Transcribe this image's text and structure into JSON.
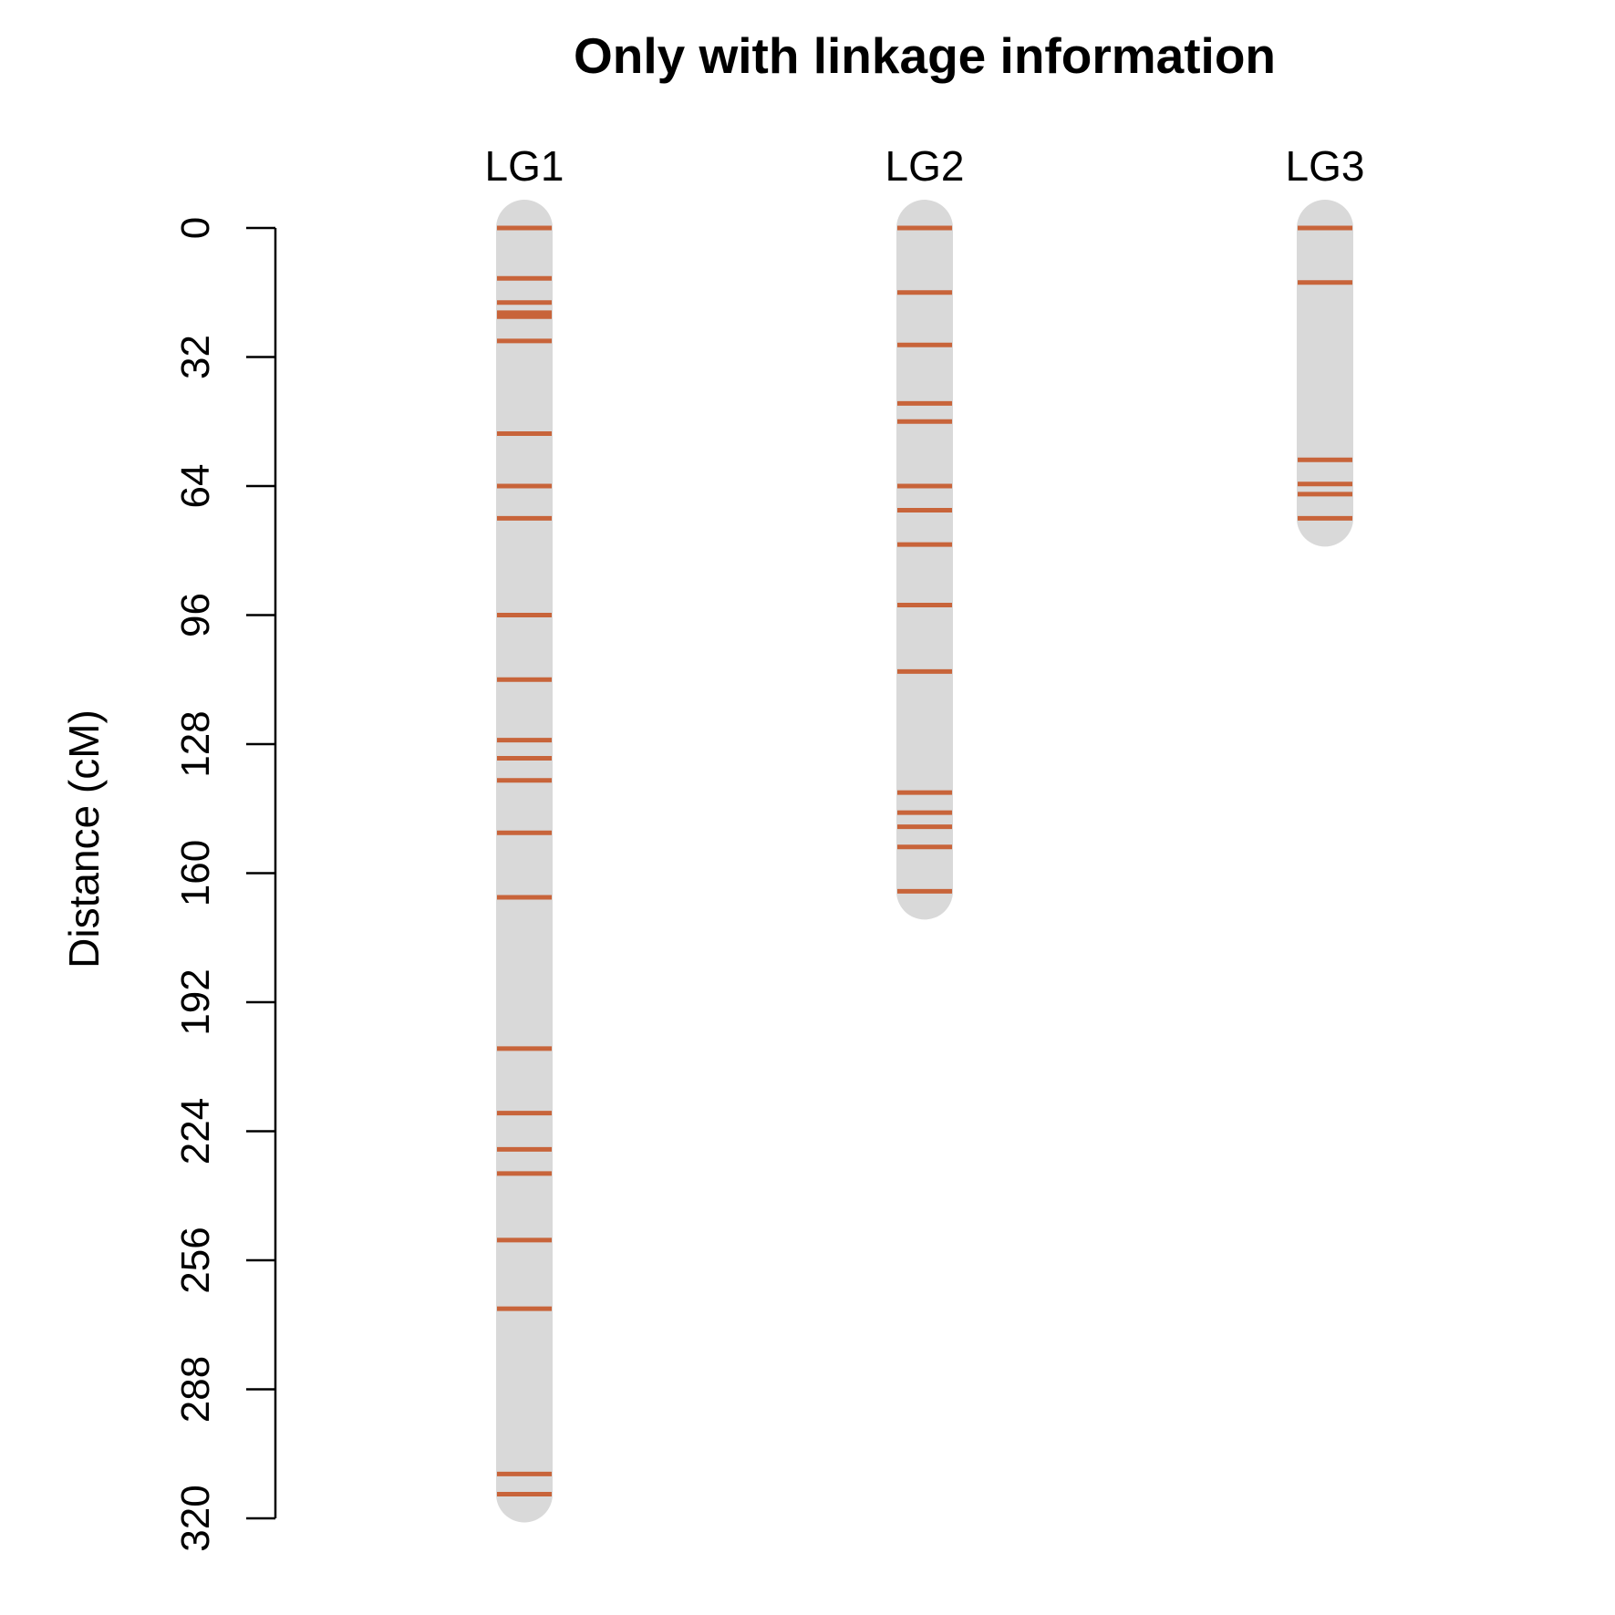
{
  "chart_data": {
    "type": "linkage-map",
    "title": "Only with linkage information",
    "ylabel": "Distance (cM)",
    "ylim": [
      0,
      320
    ],
    "yticks": [
      0,
      32,
      64,
      96,
      128,
      160,
      192,
      224,
      256,
      288,
      320
    ],
    "chromosome_color": "#d9d9d9",
    "marker_color": "#c8643a",
    "linkage_groups": [
      {
        "name": "LG1",
        "length": 314,
        "markers": [
          0,
          12.5,
          18.5,
          21,
          22,
          28,
          51,
          64,
          72,
          96,
          112,
          127,
          131.5,
          137,
          150,
          166,
          203.5,
          219.5,
          228.5,
          234.5,
          251,
          268,
          309,
          314
        ]
      },
      {
        "name": "LG2",
        "length": 164.5,
        "markers": [
          0,
          16,
          29,
          43.5,
          48,
          64,
          70,
          78.5,
          93.5,
          110,
          140,
          145,
          148.5,
          153.5,
          164.5
        ]
      },
      {
        "name": "LG3",
        "length": 72,
        "markers": [
          0,
          13.5,
          57.5,
          63.5,
          66,
          72
        ]
      }
    ]
  }
}
